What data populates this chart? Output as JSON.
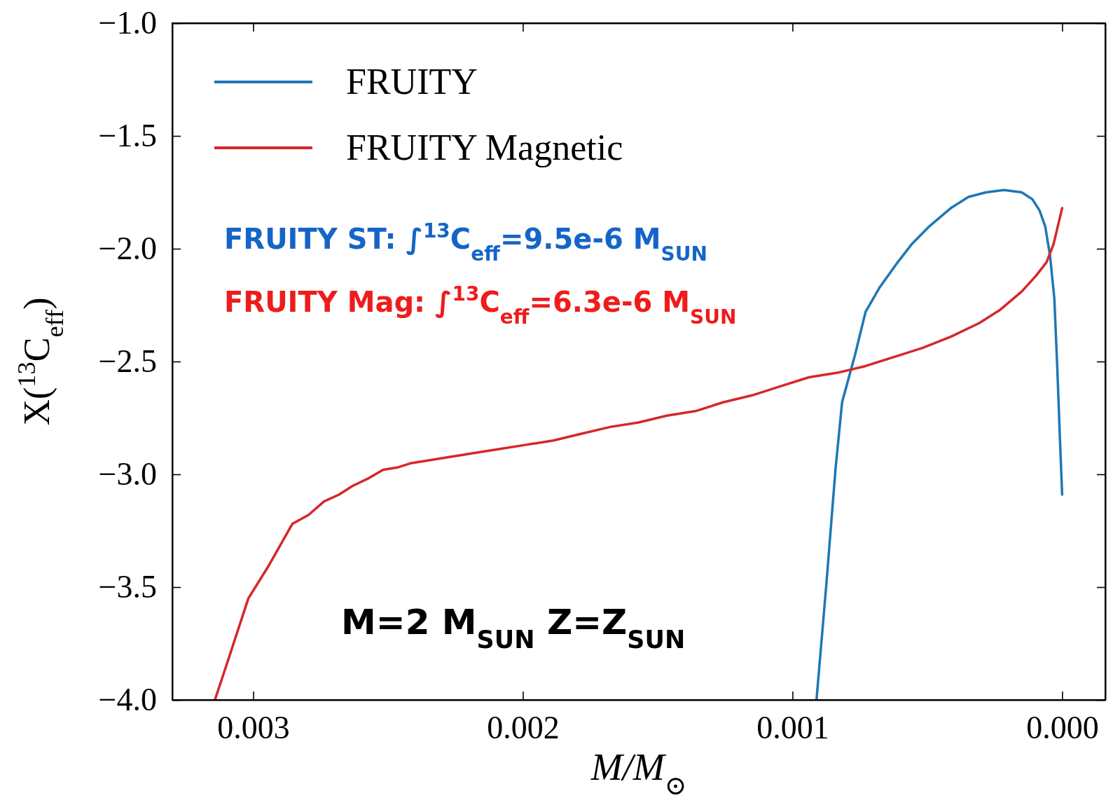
{
  "chart_data": {
    "type": "line",
    "xlabel": "M/M$_{⊙}$",
    "ylabel": "X($^{13}$C$_{eff}$)",
    "xlim": [
      0.0033,
      -0.00016
    ],
    "ylim": [
      -4.0,
      -1.0
    ],
    "xticks": [
      0.003,
      0.002,
      0.001,
      {
        "value": 0,
        "label": "0.000"
      }
    ],
    "yticks": [
      {
        "value": -1,
        "label": "−1.0"
      },
      {
        "value": -1.5,
        "label": "−1.5"
      },
      {
        "value": -2,
        "label": "−2.0"
      },
      {
        "value": -2.5,
        "label": "−2.5"
      },
      {
        "value": -3,
        "label": "−3.0"
      },
      {
        "value": -3.5,
        "label": "−3.5"
      },
      {
        "value": -4,
        "label": "−4.0"
      }
    ],
    "grid": false,
    "legend": "top left",
    "marker": "none",
    "line_style": "solid",
    "series": [
      {
        "name": "FRUITY",
        "color": "#1f77b4",
        "x": [
          0.000911,
          0.000874,
          0.00084,
          0.000816,
          0.000768,
          0.000729,
          0.000676,
          0.00061,
          0.000558,
          0.000492,
          0.000413,
          0.000347,
          0.000282,
          0.000216,
          0.00015,
          0.000111,
          8.4e-05,
          6.3e-05,
          4.5e-05,
          2.9e-05,
          1.8e-05,
          8e-06,
          0
        ],
        "values": [
          -4.0,
          -3.48,
          -2.97,
          -2.68,
          -2.47,
          -2.28,
          -2.17,
          -2.06,
          -1.98,
          -1.9,
          -1.82,
          -1.77,
          -1.75,
          -1.74,
          -1.75,
          -1.78,
          -1.83,
          -1.9,
          -2.03,
          -2.22,
          -2.53,
          -2.85,
          -3.09
        ]
      },
      {
        "name": "FRUITY Magnetic",
        "color": "#d62728",
        "x": [
          0.003142,
          0.003092,
          0.003018,
          0.002945,
          0.002855,
          0.002795,
          0.002737,
          0.002682,
          0.002629,
          0.002576,
          0.002518,
          0.002466,
          0.002413,
          0.00236,
          0.002308,
          0.002203,
          0.002097,
          0.001992,
          0.001887,
          0.001782,
          0.001676,
          0.001571,
          0.001466,
          0.00136,
          0.001255,
          0.00115,
          0.001045,
          0.000939,
          0.000834,
          0.000729,
          0.000624,
          0.000518,
          0.000413,
          0.000308,
          0.000229,
          0.00015,
          9.7e-05,
          5.8e-05,
          3.2e-05,
          1.6e-05,
          0
        ],
        "values": [
          -4.0,
          -3.82,
          -3.55,
          -3.41,
          -3.22,
          -3.18,
          -3.12,
          -3.09,
          -3.05,
          -3.02,
          -2.98,
          -2.97,
          -2.95,
          -2.94,
          -2.93,
          -2.91,
          -2.89,
          -2.87,
          -2.85,
          -2.82,
          -2.79,
          -2.77,
          -2.74,
          -2.72,
          -2.68,
          -2.65,
          -2.61,
          -2.57,
          -2.55,
          -2.52,
          -2.48,
          -2.44,
          -2.39,
          -2.33,
          -2.27,
          -2.19,
          -2.12,
          -2.06,
          -1.98,
          -1.9,
          -1.82
        ]
      }
    ],
    "annotations": [
      "FRUITY ST:  ∫$^{13}$C$_{eff}$=9.5e-6 M$_{SUN}$",
      "FRUITY Mag: ∫$^{13}$C$_{eff}$=6.3e-6 M$_{SUN}$",
      "M=2 M$_{SUN}$ Z=Z$_{SUN}$"
    ]
  }
}
